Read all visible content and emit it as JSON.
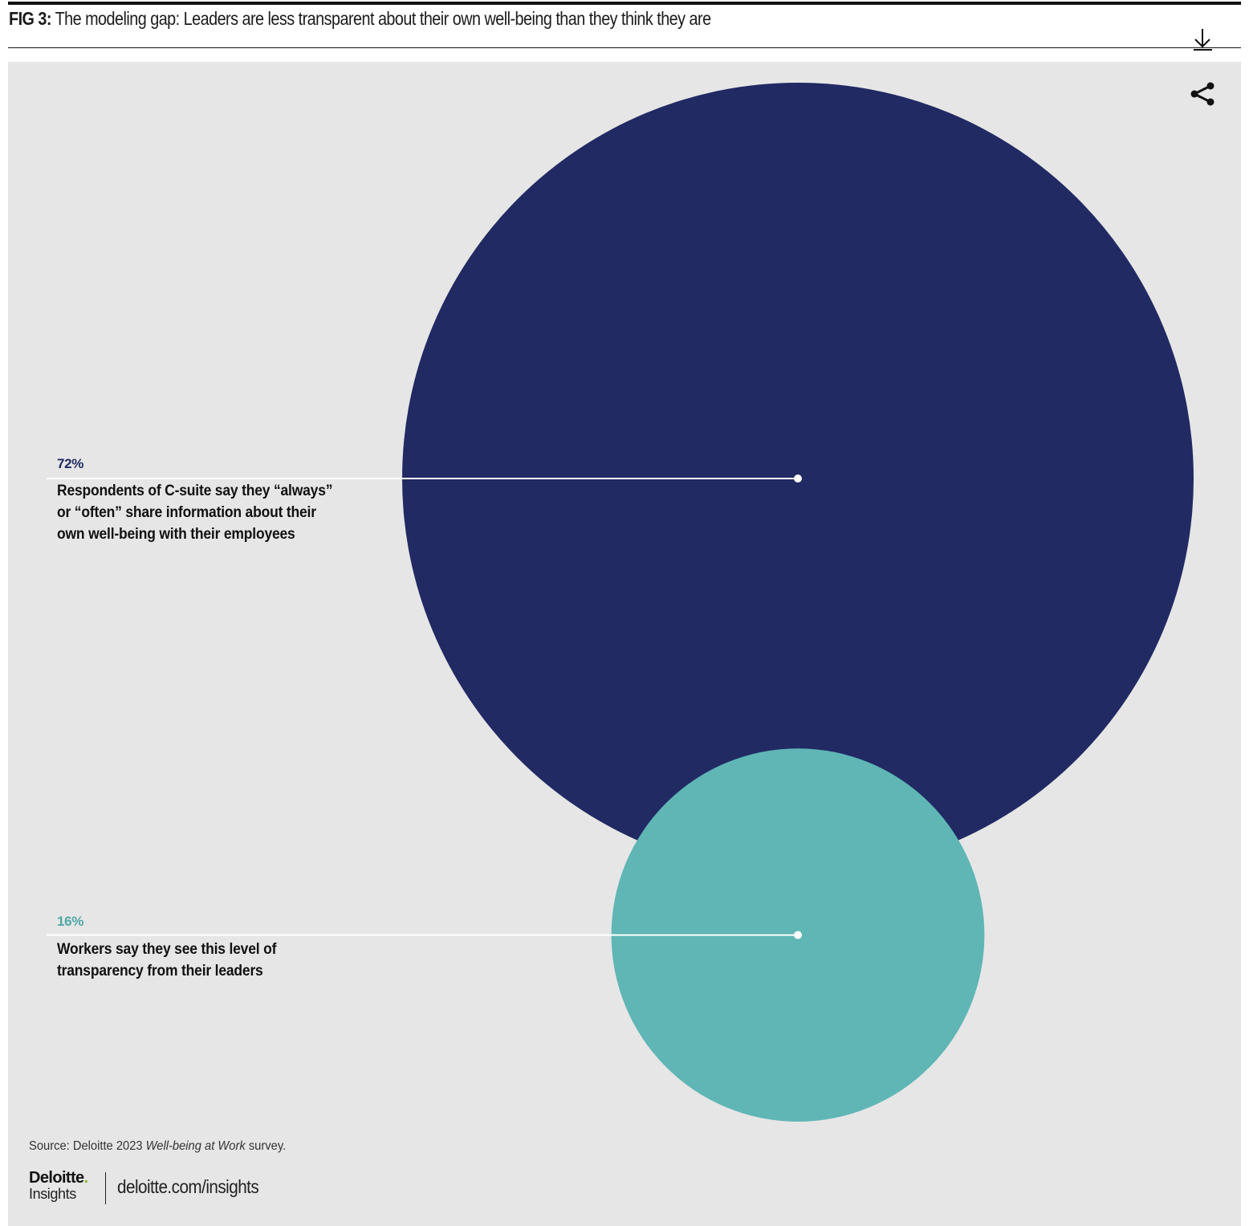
{
  "header": {
    "fig_label": "FIG 3:",
    "title": "The modeling gap: Leaders are less transparent about their own well-being than they think they are"
  },
  "icons": {
    "download": "download-icon",
    "share": "share-icon"
  },
  "chart_data": {
    "type": "proportional-area-circles",
    "series": [
      {
        "value": 72,
        "value_label": "72%",
        "description_lines": [
          "Respondents of C-suite say they “always”",
          "or “often” share information about their",
          "own well-being with their employees"
        ],
        "color": "#212a63",
        "label_color": "#212a63"
      },
      {
        "value": 16,
        "value_label": "16%",
        "description_lines": [
          "Workers say they see this level of",
          "transparency from their leaders"
        ],
        "color": "#5fb6b5",
        "label_color": "#4fa8a6"
      }
    ]
  },
  "footer": {
    "source_prefix": "Source: Deloitte 2023 ",
    "source_italic": "Well-being at Work",
    "source_suffix": " survey.",
    "logo_brand": "Deloitte",
    "logo_dot": ".",
    "logo_sub": "Insights",
    "site": "deloitte.com/insights"
  },
  "colors": {
    "panel_bg": "#e6e6e6",
    "leader_line": "#ffffff"
  }
}
